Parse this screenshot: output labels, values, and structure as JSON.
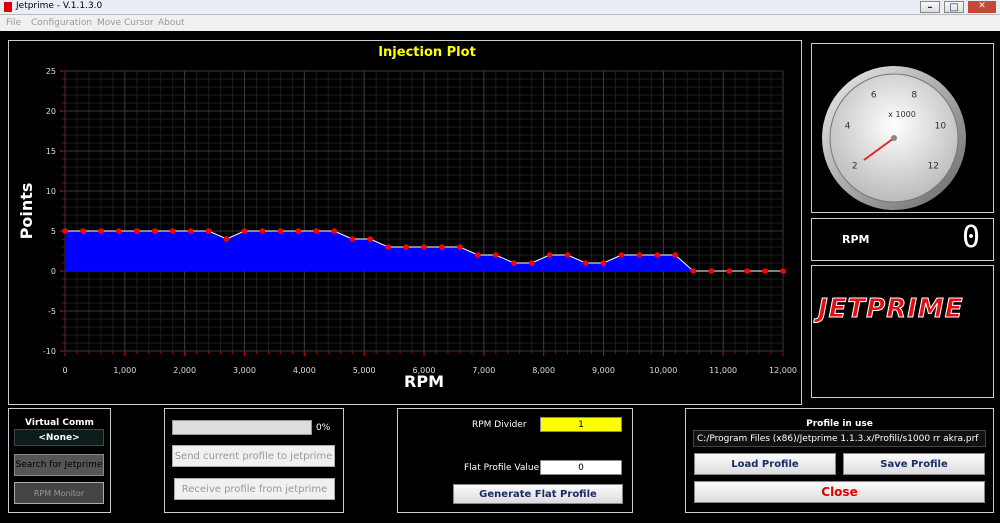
{
  "ui": {
    "window_title": "Jetprime - V.1.1.3.0",
    "menu": [
      "File",
      "Configuration",
      "Move Cursor",
      "About"
    ],
    "comm": {
      "title": "Virtual Comm",
      "port": "<None>",
      "search_button": "Search for Jetprime",
      "monitor_button": "RPM Monitor"
    },
    "transfer": {
      "progress": "0%",
      "send_button": "Send current profile to jetprime",
      "receive_button": "Receive profile from jetprime"
    },
    "flat": {
      "divider_label": "RPM Divider",
      "divider_value": "1",
      "flat_label": "Flat Profile Value",
      "flat_value": "0",
      "generate_button": "Generate Flat Profile"
    },
    "profile": {
      "title": "Profile in use",
      "path": "C:/Program Files (x86)/Jetprime 1.1.3.x/Profili/s1000 rr akra.prf",
      "load_button": "Load Profile",
      "save_button": "Save Profile",
      "close_button": "Close"
    },
    "gauge": {
      "scale": [
        2,
        4,
        6,
        8,
        10,
        12
      ],
      "multiplier": "x 1000"
    },
    "rpm": {
      "label": "RPM",
      "display": "0"
    },
    "logo": "JETPRIME"
  },
  "chart_data": {
    "type": "area",
    "title": "Injection Plot",
    "x_label": "RPM",
    "y_label": "Points",
    "x": [
      0,
      300,
      600,
      900,
      1200,
      1500,
      1800,
      2100,
      2400,
      2700,
      3000,
      3300,
      3600,
      3900,
      4200,
      4500,
      4800,
      5100,
      5400,
      5700,
      6000,
      6300,
      6600,
      6900,
      7200,
      7500,
      7800,
      8100,
      8400,
      8700,
      9000,
      9300,
      9600,
      9900,
      10200,
      10500,
      10800,
      11100,
      11400,
      11700,
      12000
    ],
    "values": [
      5,
      5,
      5,
      5,
      5,
      5,
      5,
      5,
      5,
      4,
      5,
      5,
      5,
      5,
      5,
      5,
      4,
      4,
      3,
      3,
      3,
      3,
      3,
      2,
      2,
      1,
      1,
      2,
      2,
      1,
      1,
      2,
      2,
      2,
      2,
      0,
      0,
      0,
      0,
      0,
      0
    ],
    "color": "#0000ff",
    "line_color": "#ffffff",
    "marker_color": "#ff0000",
    "title_color": "#ffff00",
    "xlim": [
      0,
      12000
    ],
    "xticks": [
      0,
      {
        "value": 1000,
        "label": "1,000"
      },
      {
        "value": 2000,
        "label": "2,000"
      },
      {
        "value": 3000,
        "label": "3,000"
      },
      {
        "value": 4000,
        "label": "4,000"
      },
      {
        "value": 5000,
        "label": "5,000"
      },
      {
        "value": 6000,
        "label": "6,000"
      },
      {
        "value": 7000,
        "label": "7,000"
      },
      {
        "value": 8000,
        "label": "8,000"
      },
      {
        "value": 9000,
        "label": "9,000"
      },
      {
        "value": 10000,
        "label": "10,000"
      },
      {
        "value": 11000,
        "label": "11,000"
      },
      {
        "value": 12000,
        "label": "12,000"
      }
    ],
    "ylim": [
      -10,
      25
    ],
    "yticks": [
      -10,
      -5,
      0,
      5,
      10,
      15,
      20,
      25
    ],
    "grid": true
  }
}
